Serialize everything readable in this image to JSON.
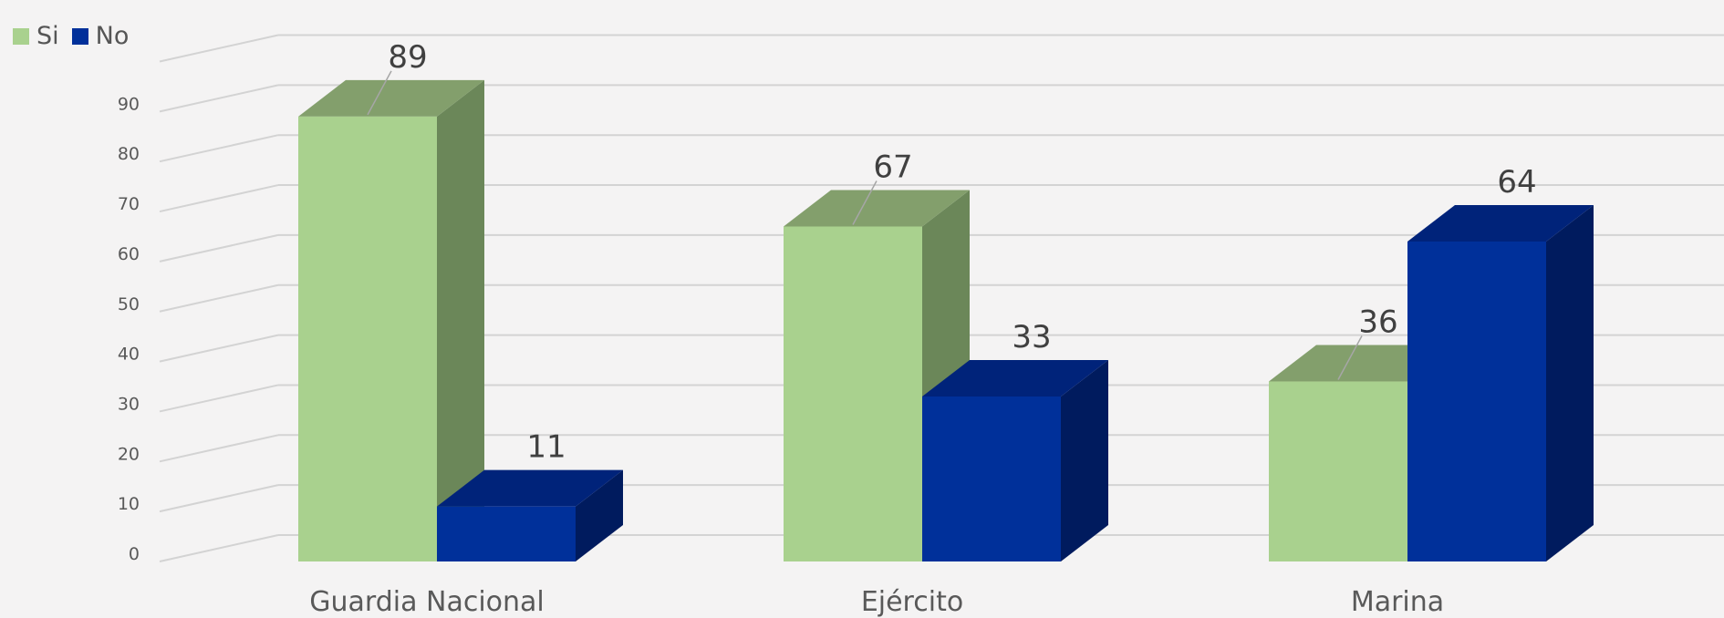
{
  "chart_data": {
    "type": "bar",
    "categories": [
      "Guardia Nacional",
      "Ejército",
      "Marina"
    ],
    "series": [
      {
        "name": "Si",
        "values": [
          89,
          67,
          36
        ],
        "color": "#a9d18e",
        "side_color": "#6b8759",
        "top_color": "#839f6c"
      },
      {
        "name": "No",
        "values": [
          11,
          33,
          64
        ],
        "color": "#00309a",
        "side_color": "#001b5e",
        "top_color": "#00237a"
      }
    ],
    "data_labels": [
      [
        "89",
        "67",
        "36"
      ],
      [
        "11",
        "33",
        "64"
      ]
    ],
    "yticks": [
      "0",
      "10",
      "20",
      "30",
      "40",
      "50",
      "60",
      "70",
      "80",
      "90"
    ],
    "ylim": [
      0,
      100
    ],
    "legend_position": "top-left",
    "grid": true,
    "style": "3d-clustered-column"
  }
}
